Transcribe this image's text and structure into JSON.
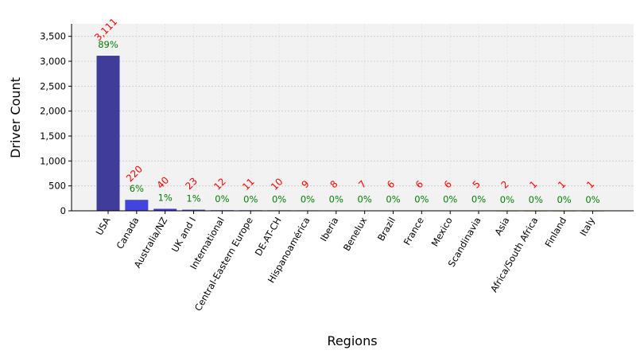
{
  "chart_data": {
    "type": "bar",
    "xlabel": "Regions",
    "ylabel": "Driver Count",
    "ylim": [
      0,
      3750
    ],
    "yticks": [
      0,
      500,
      1000,
      1500,
      2000,
      2500,
      3000,
      3500
    ],
    "ytick_labels": [
      "0",
      "500",
      "1,000",
      "1,500",
      "2,000",
      "2,500",
      "3,000",
      "3,500"
    ],
    "grid": true,
    "categories": [
      "USA",
      "Canada",
      "Australia/NZ",
      "UK and I",
      "International",
      "Central-Eastern Europe",
      "DE-AT-CH",
      "Hispanoamérica",
      "Iberia",
      "Benelux",
      "Brazil",
      "France",
      "Mexico",
      "Scandinavia",
      "Asia",
      "Africa/South Africa",
      "Finland",
      "Italy"
    ],
    "values": [
      3111,
      220,
      40,
      23,
      12,
      11,
      10,
      9,
      8,
      7,
      6,
      6,
      6,
      5,
      2,
      1,
      1,
      1
    ],
    "count_labels": [
      "3,111",
      "220",
      "40",
      "23",
      "12",
      "11",
      "10",
      "9",
      "8",
      "7",
      "6",
      "6",
      "6",
      "5",
      "2",
      "1",
      "1",
      "1"
    ],
    "percent_labels": [
      "89%",
      "6%",
      "1%",
      "1%",
      "0%",
      "0%",
      "0%",
      "0%",
      "0%",
      "0%",
      "0%",
      "0%",
      "0%",
      "0%",
      "0%",
      "0%",
      "0%",
      "0%"
    ],
    "bar_colors": [
      "#3f3d99",
      "#4343dd",
      "#3b3bd6",
      "#4a52c8",
      "#3d4cc0",
      "#3a56b8",
      "#2f65a8",
      "#2a7399",
      "#2a8080",
      "#33906a",
      "#4a9a55",
      "#6aa140",
      "#8aa830",
      "#a8aa28",
      "#c0ad25",
      "#d0a828",
      "#d8a22a",
      "#dd9e2c"
    ],
    "count_label_color": "#ff0000",
    "percent_label_color": "#008000",
    "plot_background": "#f2f2f2"
  }
}
